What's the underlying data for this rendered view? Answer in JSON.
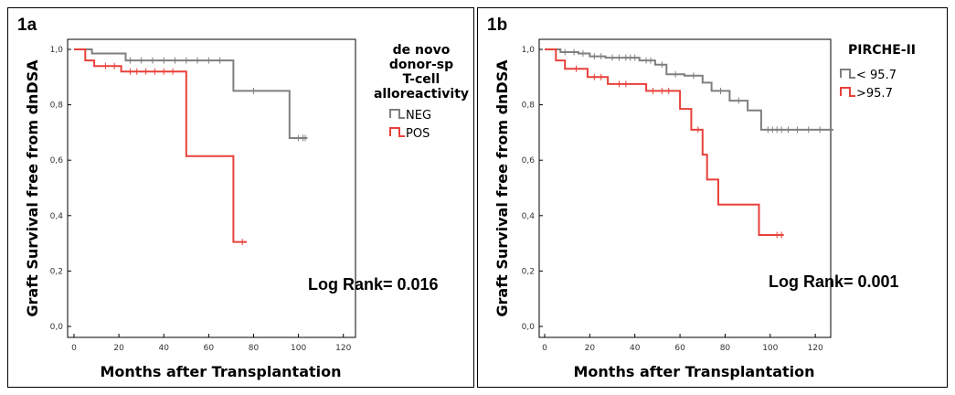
{
  "chart_data": [
    {
      "type": "line",
      "panel_label": "1a",
      "xlabel": "Months after Transplantation",
      "ylabel": "Graft Survival free from dnDSA",
      "xlim": [
        0,
        125
      ],
      "ylim": [
        0,
        1.0
      ],
      "x_ticks": [
        "0",
        "20",
        "40",
        "60",
        "80",
        "100",
        "120"
      ],
      "y_ticks": [
        "0,0",
        "0,2",
        "0,4",
        "0,6",
        "0,8",
        "1,0"
      ],
      "legend_title": [
        "de novo",
        "donor-sp",
        "T-cell",
        "alloreactivity"
      ],
      "legend_placement": "top-right",
      "annotation": "Log Rank= 0.016",
      "grid": false,
      "series": [
        {
          "name": "NEG",
          "color": "#7f7f7f",
          "steps": [
            [
              0,
              1.0
            ],
            [
              8,
              0.985
            ],
            [
              23,
              0.96
            ],
            [
              71,
              0.85
            ],
            [
              96,
              0.68
            ],
            [
              104,
              0.68
            ]
          ],
          "censored": [
            25,
            30,
            35,
            40,
            45,
            50,
            55,
            60,
            65,
            80,
            100,
            102,
            103
          ]
        },
        {
          "name": "POS",
          "color": "#e8413a",
          "steps": [
            [
              0,
              1.0
            ],
            [
              5,
              0.96
            ],
            [
              9,
              0.94
            ],
            [
              21,
              0.92
            ],
            [
              50,
              0.615
            ],
            [
              71,
              0.305
            ],
            [
              77,
              0.305
            ]
          ],
          "censored": [
            14,
            18,
            25,
            28,
            32,
            36,
            40,
            44,
            75
          ]
        }
      ]
    },
    {
      "type": "line",
      "panel_label": "1b",
      "xlabel": "Months after Transplantation",
      "ylabel": "Graft Survival free from dnDSA",
      "xlim": [
        0,
        128
      ],
      "ylim": [
        0,
        1.0
      ],
      "x_ticks": [
        "0",
        "20",
        "40",
        "60",
        "80",
        "100",
        "120"
      ],
      "y_ticks": [
        "0,0",
        "0,2",
        "0,4",
        "0,6",
        "0,8",
        "1,0"
      ],
      "legend_title": [
        "PIRCHE-II"
      ],
      "legend_placement": "top-right",
      "annotation": "Log Rank= 0.001",
      "grid": false,
      "series": [
        {
          "name": "< 95.7",
          "color": "#7f7f7f",
          "steps": [
            [
              0,
              1.0
            ],
            [
              7,
              0.99
            ],
            [
              15,
              0.985
            ],
            [
              20,
              0.975
            ],
            [
              27,
              0.97
            ],
            [
              42,
              0.96
            ],
            [
              49,
              0.945
            ],
            [
              54,
              0.91
            ],
            [
              62,
              0.905
            ],
            [
              70,
              0.88
            ],
            [
              74,
              0.85
            ],
            [
              82,
              0.815
            ],
            [
              90,
              0.78
            ],
            [
              96,
              0.71
            ],
            [
              128,
              0.71
            ]
          ],
          "censored": [
            9,
            13,
            17,
            22,
            25,
            30,
            33,
            36,
            38,
            40,
            45,
            47,
            52,
            58,
            66,
            78,
            86,
            99,
            101,
            103,
            105,
            108,
            112,
            117,
            122
          ]
        },
        {
          "name": ">95.7",
          "color": "#e8413a",
          "steps": [
            [
              0,
              1.0
            ],
            [
              5,
              0.96
            ],
            [
              9,
              0.93
            ],
            [
              19,
              0.9
            ],
            [
              28,
              0.875
            ],
            [
              45,
              0.85
            ],
            [
              60,
              0.785
            ],
            [
              65,
              0.71
            ],
            [
              70,
              0.62
            ],
            [
              72,
              0.53
            ],
            [
              77,
              0.44
            ],
            [
              95,
              0.33
            ],
            [
              106,
              0.33
            ]
          ],
          "censored": [
            14,
            22,
            25,
            33,
            36,
            48,
            52,
            55,
            68,
            103,
            105
          ]
        }
      ]
    }
  ]
}
